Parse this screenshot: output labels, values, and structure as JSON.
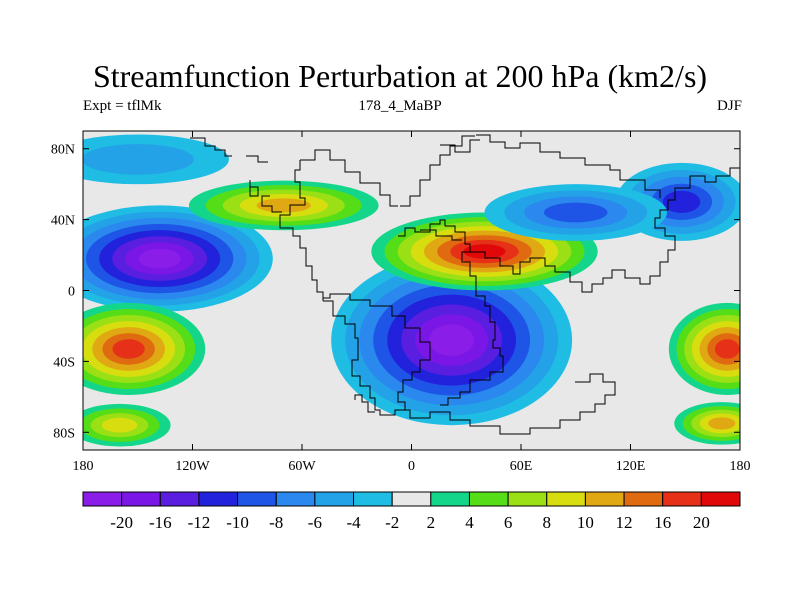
{
  "title": "Streamfunction Perturbation at 200 hPa (km2/s)",
  "left_string": "Expt = tflMk",
  "center_string": "178_4_MaBP",
  "right_string": "DJF",
  "x_ticks": [
    "180",
    "120W",
    "60W",
    "0",
    "60E",
    "120E",
    "180"
  ],
  "x_tick_values": [
    -180,
    -120,
    -60,
    0,
    60,
    120,
    180
  ],
  "y_ticks": [
    "80N",
    "40N",
    "0",
    "40S",
    "80S"
  ],
  "y_tick_values": [
    80,
    40,
    0,
    -40,
    -80
  ],
  "lon_range": [
    -180,
    180
  ],
  "lat_range": [
    -90,
    90
  ],
  "colorbar": {
    "labels": [
      "-20",
      "-16",
      "-12",
      "-10",
      "-8",
      "-6",
      "-4",
      "-2",
      "2",
      "4",
      "6",
      "8",
      "10",
      "12",
      "16",
      "20"
    ],
    "colors": [
      "#8a1ee8",
      "#7a17e6",
      "#5a1ee0",
      "#2222dd",
      "#1e55e6",
      "#2a88ee",
      "#23a2e8",
      "#1fbde4",
      "#e8e8e8",
      "#14d68a",
      "#55dd18",
      "#9ae014",
      "#d8dd10",
      "#e0a812",
      "#e06a10",
      "#e63018",
      "#e00808"
    ]
  },
  "chart_data": {
    "type": "heatmap",
    "title": "Streamfunction Perturbation at 200 hPa (km2/s)",
    "levels": [
      -20,
      -16,
      -12,
      -10,
      -8,
      -6,
      -4,
      -2,
      2,
      4,
      6,
      8,
      10,
      12,
      16,
      20
    ],
    "field_centers": [
      {
        "lon": -138,
        "lat": 18,
        "value": -22
      },
      {
        "lon": 22,
        "lat": -28,
        "value": -22
      },
      {
        "lon": 40,
        "lat": 22,
        "value": 21
      },
      {
        "lon": -155,
        "lat": -33,
        "value": 17
      },
      {
        "lon": 173,
        "lat": -33,
        "value": 17
      },
      {
        "lon": 148,
        "lat": 50,
        "value": -12
      },
      {
        "lon": -70,
        "lat": 48,
        "value": 10
      },
      {
        "lon": 90,
        "lat": 44,
        "value": -10
      },
      {
        "lon": -150,
        "lat": 74,
        "value": -6
      },
      {
        "lon": -160,
        "lat": -76,
        "value": 9
      },
      {
        "lon": 170,
        "lat": -75,
        "value": 10
      }
    ]
  }
}
